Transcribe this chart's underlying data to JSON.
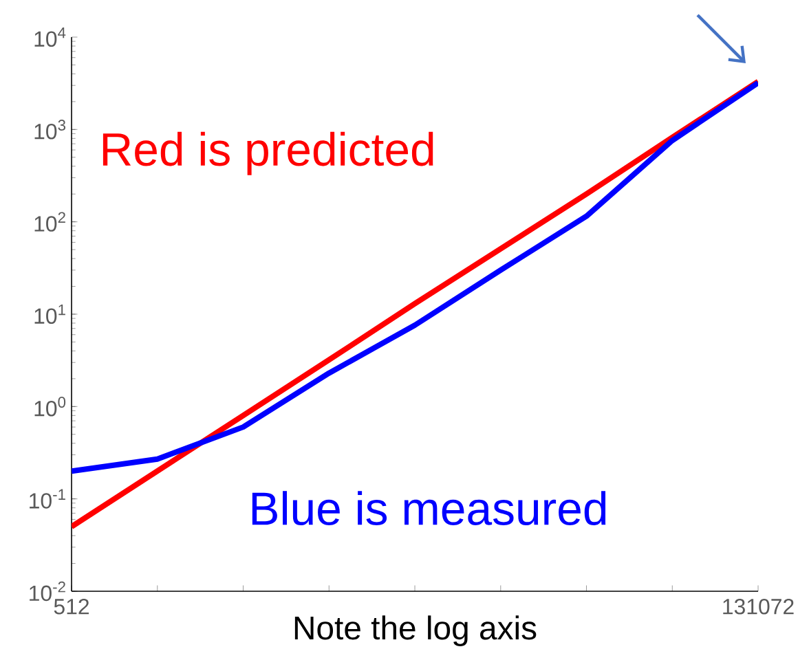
{
  "chart_data": {
    "type": "line",
    "xlabel": "Note the log axis",
    "x": [
      512,
      1024,
      2048,
      4096,
      8192,
      16384,
      32768,
      65536,
      131072
    ],
    "series": [
      {
        "name": "Red is predicted",
        "color": "#ff0000",
        "values": [
          0.05,
          0.2,
          0.8,
          3.2,
          13,
          51,
          200,
          820,
          3300
        ]
      },
      {
        "name": "Blue is measured",
        "color": "#0000ff",
        "values": [
          0.2,
          0.27,
          0.6,
          2.3,
          7.6,
          30,
          115,
          760,
          3200
        ]
      }
    ],
    "log": "xy",
    "xlim": [
      512,
      131072
    ],
    "ylim": [
      0.01,
      10000
    ],
    "xticks": [
      512,
      {
        "value": 1024,
        "label": null
      },
      {
        "value": 2048,
        "label": null
      },
      {
        "value": 4096,
        "label": null
      },
      {
        "value": 8192,
        "label": null
      },
      {
        "value": 16384,
        "label": null
      },
      {
        "value": 32768,
        "label": null
      },
      {
        "value": 65536,
        "label": null
      },
      131072
    ],
    "yticks": [
      {
        "value": 0.01,
        "label": "10$^{-2}$"
      },
      {
        "value": 0.1,
        "label": "10$^{-1}$"
      },
      {
        "value": 1,
        "label": "10$^{0}$"
      },
      {
        "value": 10,
        "label": "10$^{1}$"
      },
      {
        "value": 100,
        "label": "10$^{2}$"
      },
      {
        "value": 1000,
        "label": "10$^{3}$"
      },
      {
        "value": 10000,
        "label": "10$^{4}$"
      }
    ],
    "grid": false,
    "legend": false,
    "marker": "none",
    "line_style": "solid"
  }
}
